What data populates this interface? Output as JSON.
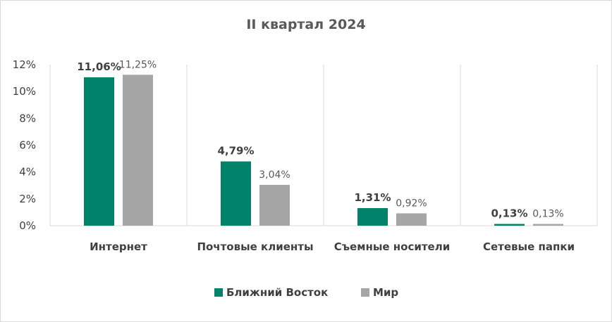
{
  "chart_data": {
    "type": "bar",
    "title": "II квартал 2024",
    "categories": [
      "Интернет",
      "Почтовые клиенты",
      "Съемные носители",
      "Сетевые папки"
    ],
    "series": [
      {
        "name": "Ближний Восток",
        "values": [
          11.06,
          4.79,
          1.31,
          0.13
        ],
        "labels": [
          "11,06%",
          "4,79%",
          "1,31%",
          "0,13%"
        ],
        "color": "#00826b"
      },
      {
        "name": "Мир",
        "values": [
          11.25,
          3.04,
          0.92,
          0.13
        ],
        "labels": [
          "11,25%",
          "3,04%",
          "0,92%",
          "0,13%"
        ],
        "color": "#a6a6a6"
      }
    ],
    "ylim": [
      0,
      12
    ],
    "yticks": [
      0,
      2,
      4,
      6,
      8,
      10,
      12
    ],
    "ytick_labels": [
      "0%",
      "2%",
      "4%",
      "6%",
      "8%",
      "10%",
      "12%"
    ],
    "xlabel": "",
    "ylabel": "",
    "grid": "vertical category separators",
    "legend": "bottom"
  }
}
